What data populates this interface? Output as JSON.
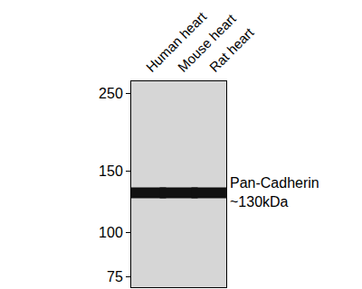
{
  "chart_data": {
    "type": "blot",
    "categories": [
      "Human heart",
      "Mouse heart",
      "Rat heart"
    ],
    "values": [
      130,
      130,
      130
    ],
    "color": "#111111",
    "log": "y",
    "ylim": [
      70,
      270
    ],
    "yticks": [
      75,
      100,
      150,
      250
    ],
    "grid": false,
    "annotation": [
      "Pan-Cadherin",
      "~130kDa"
    ]
  }
}
